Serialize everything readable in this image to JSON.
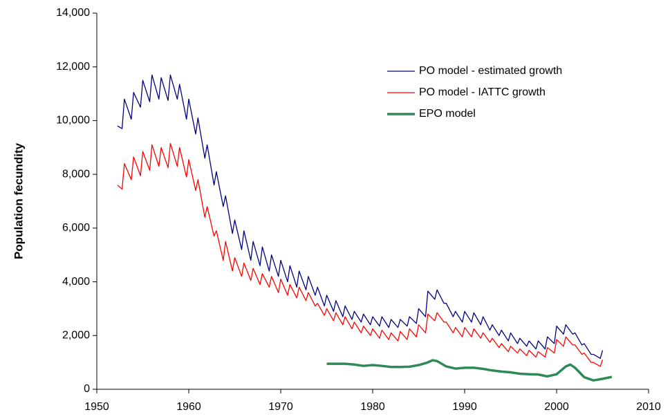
{
  "chart_data": {
    "type": "line",
    "ylabel": "Population fecundity",
    "x": [
      1952.25,
      1952.75,
      1953,
      1953.75,
      1954,
      1954.75,
      1955,
      1955.75,
      1956,
      1956.75,
      1957,
      1957.75,
      1958,
      1958.75,
      1959,
      1959.75,
      1960,
      1960.75,
      1961,
      1961.75,
      1962,
      1962.75,
      1963,
      1963.75,
      1964,
      1964.75,
      1965,
      1965.75,
      1966,
      1966.75,
      1967,
      1967.75,
      1968,
      1968.75,
      1969,
      1969.75,
      1970,
      1970.75,
      1971,
      1971.75,
      1972,
      1972.75,
      1973,
      1973.75,
      1974,
      1974.75,
      1975,
      1975.75,
      1976,
      1976.75,
      1977,
      1977.75,
      1978,
      1978.75,
      1979,
      1979.75,
      1980,
      1980.75,
      1981,
      1981.75,
      1982,
      1982.75,
      1983,
      1983.75,
      1984,
      1984.75,
      1985,
      1985.75,
      1986,
      1986.75,
      1987,
      1987.75,
      1988,
      1988.75,
      1989,
      1989.75,
      1990,
      1990.75,
      1991,
      1991.75,
      1992,
      1992.75,
      1993,
      1993.75,
      1994,
      1994.75,
      1995,
      1995.75,
      1996,
      1996.75,
      1997,
      1997.75,
      1998,
      1998.75,
      1999,
      1999.75,
      2000,
      2000.75,
      2001,
      2001.75,
      2002,
      2002.75,
      2003,
      2003.75,
      2004,
      2004.75,
      2005
    ],
    "series": [
      {
        "name": "PO model - estimated growth",
        "color": "#000080",
        "width": 1.3,
        "values": [
          9800,
          9700,
          10800,
          10050,
          11050,
          10500,
          11500,
          10700,
          11700,
          10800,
          11600,
          10750,
          11700,
          10800,
          11350,
          10050,
          10800,
          9500,
          10100,
          8600,
          9100,
          7600,
          8100,
          6800,
          7200,
          5800,
          6300,
          5200,
          5900,
          4800,
          5500,
          4600,
          5300,
          4400,
          5000,
          4200,
          4800,
          4000,
          4600,
          3800,
          4400,
          3700,
          4200,
          3500,
          3800,
          3100,
          3500,
          2900,
          3300,
          2700,
          3100,
          2600,
          2900,
          2500,
          2800,
          2400,
          2700,
          2350,
          2700,
          2300,
          2600,
          2300,
          2600,
          2350,
          2700,
          2450,
          3000,
          2700,
          3650,
          3350,
          3700,
          3200,
          3200,
          2700,
          2900,
          2500,
          2900,
          2500,
          2850,
          2400,
          2700,
          2200,
          2400,
          2000,
          2200,
          1800,
          2100,
          1700,
          1900,
          1600,
          1800,
          1500,
          1800,
          1500,
          1950,
          1700,
          2350,
          2050,
          2400,
          2050,
          2100,
          1650,
          1700,
          1300,
          1300,
          1150,
          1450
        ]
      },
      {
        "name": "PO model - IATTC growth",
        "color": "#ff0000",
        "width": 1.3,
        "values": [
          7600,
          7450,
          8400,
          7800,
          8650,
          7950,
          8850,
          8150,
          9100,
          8300,
          9000,
          8250,
          9150,
          8300,
          9000,
          7900,
          8550,
          7400,
          7800,
          6400,
          6800,
          5700,
          5900,
          4800,
          5500,
          4400,
          4900,
          4200,
          4700,
          4050,
          4500,
          3900,
          4300,
          3800,
          4200,
          3600,
          4100,
          3500,
          3900,
          3400,
          3800,
          3300,
          3600,
          3100,
          3200,
          2750,
          3000,
          2550,
          2850,
          2400,
          2700,
          2250,
          2500,
          2100,
          2350,
          2000,
          2250,
          1900,
          2200,
          1850,
          2100,
          1800,
          2150,
          1850,
          2250,
          1950,
          2400,
          2100,
          2800,
          2550,
          2850,
          2500,
          2500,
          2100,
          2300,
          1950,
          2300,
          1950,
          2250,
          1900,
          2100,
          1750,
          1900,
          1550,
          1700,
          1400,
          1600,
          1350,
          1500,
          1250,
          1450,
          1200,
          1400,
          1200,
          1550,
          1350,
          1850,
          1600,
          1950,
          1650,
          1650,
          1300,
          1350,
          1000,
          1000,
          850,
          1100
        ]
      },
      {
        "name": "EPO model",
        "color": "#2e8b57",
        "width": 3.5,
        "x": [
          1975,
          1976,
          1977,
          1978,
          1979,
          1980,
          1981,
          1982,
          1983,
          1984,
          1985,
          1986,
          1986.5,
          1987,
          1988,
          1989,
          1990,
          1991,
          1992,
          1993,
          1994,
          1995,
          1996,
          1997,
          1998,
          1999,
          2000,
          2001,
          2001.5,
          2002,
          2003,
          2004,
          2005,
          2006
        ],
        "values": [
          950,
          950,
          950,
          920,
          870,
          900,
          870,
          830,
          830,
          840,
          900,
          1000,
          1080,
          1050,
          850,
          770,
          800,
          800,
          760,
          700,
          660,
          630,
          580,
          560,
          550,
          480,
          560,
          850,
          920,
          800,
          450,
          330,
          390,
          460
        ]
      }
    ],
    "xlim": [
      1950,
      2010
    ],
    "xticks": [
      1950,
      1960,
      1970,
      1980,
      1990,
      2000,
      2010
    ],
    "ylim": [
      0,
      14000
    ],
    "yticks": [
      0,
      {
        "value": 2000,
        "label": "2,000"
      },
      {
        "value": 4000,
        "label": "4,000"
      },
      {
        "value": 6000,
        "label": "6,000"
      },
      {
        "value": 8000,
        "label": "8,000"
      },
      {
        "value": 10000,
        "label": "10,000"
      },
      {
        "value": 12000,
        "label": "12,000"
      },
      {
        "value": 14000,
        "label": "14,000"
      }
    ]
  }
}
